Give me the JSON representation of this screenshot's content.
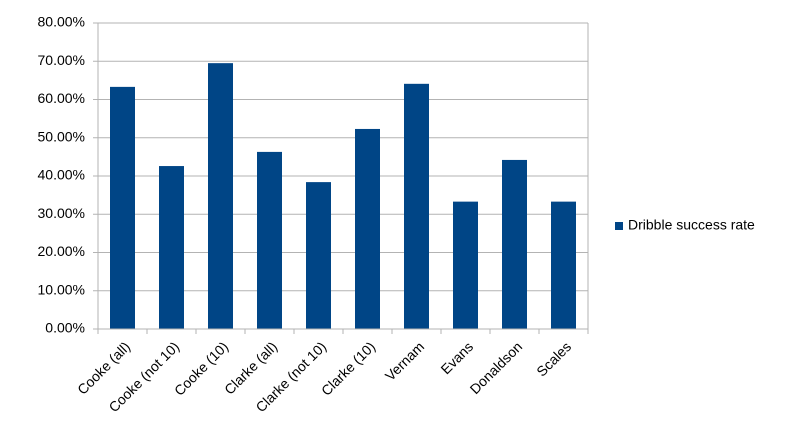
{
  "chart_data": {
    "type": "bar",
    "categories": [
      "Cooke (all)",
      "Cooke (not 10)",
      "Cooke (10)",
      "Clarke (all)",
      "Clarke (not 10)",
      "Clarke (10)",
      "Vernam",
      "Evans",
      "Donaldson",
      "Scales"
    ],
    "series": [
      {
        "name": "Dribble success rate",
        "color": "#004586",
        "values": [
          63.3,
          42.6,
          69.5,
          46.3,
          38.4,
          52.3,
          64.1,
          33.3,
          44.2,
          33.3
        ]
      }
    ],
    "ylim": [
      0,
      80
    ],
    "yticks": [
      {
        "value": 0,
        "label": "0.00%"
      },
      {
        "value": 10,
        "label": "10.00%"
      },
      {
        "value": 20,
        "label": "20.00%"
      },
      {
        "value": 30,
        "label": "30.00%"
      },
      {
        "value": 40,
        "label": "40.00%"
      },
      {
        "value": 50,
        "label": "50.00%"
      },
      {
        "value": 60,
        "label": "60.00%"
      },
      {
        "value": 70,
        "label": "70.00%"
      },
      {
        "value": 80,
        "label": "80.00%"
      }
    ],
    "grid": true,
    "legend": "right"
  }
}
